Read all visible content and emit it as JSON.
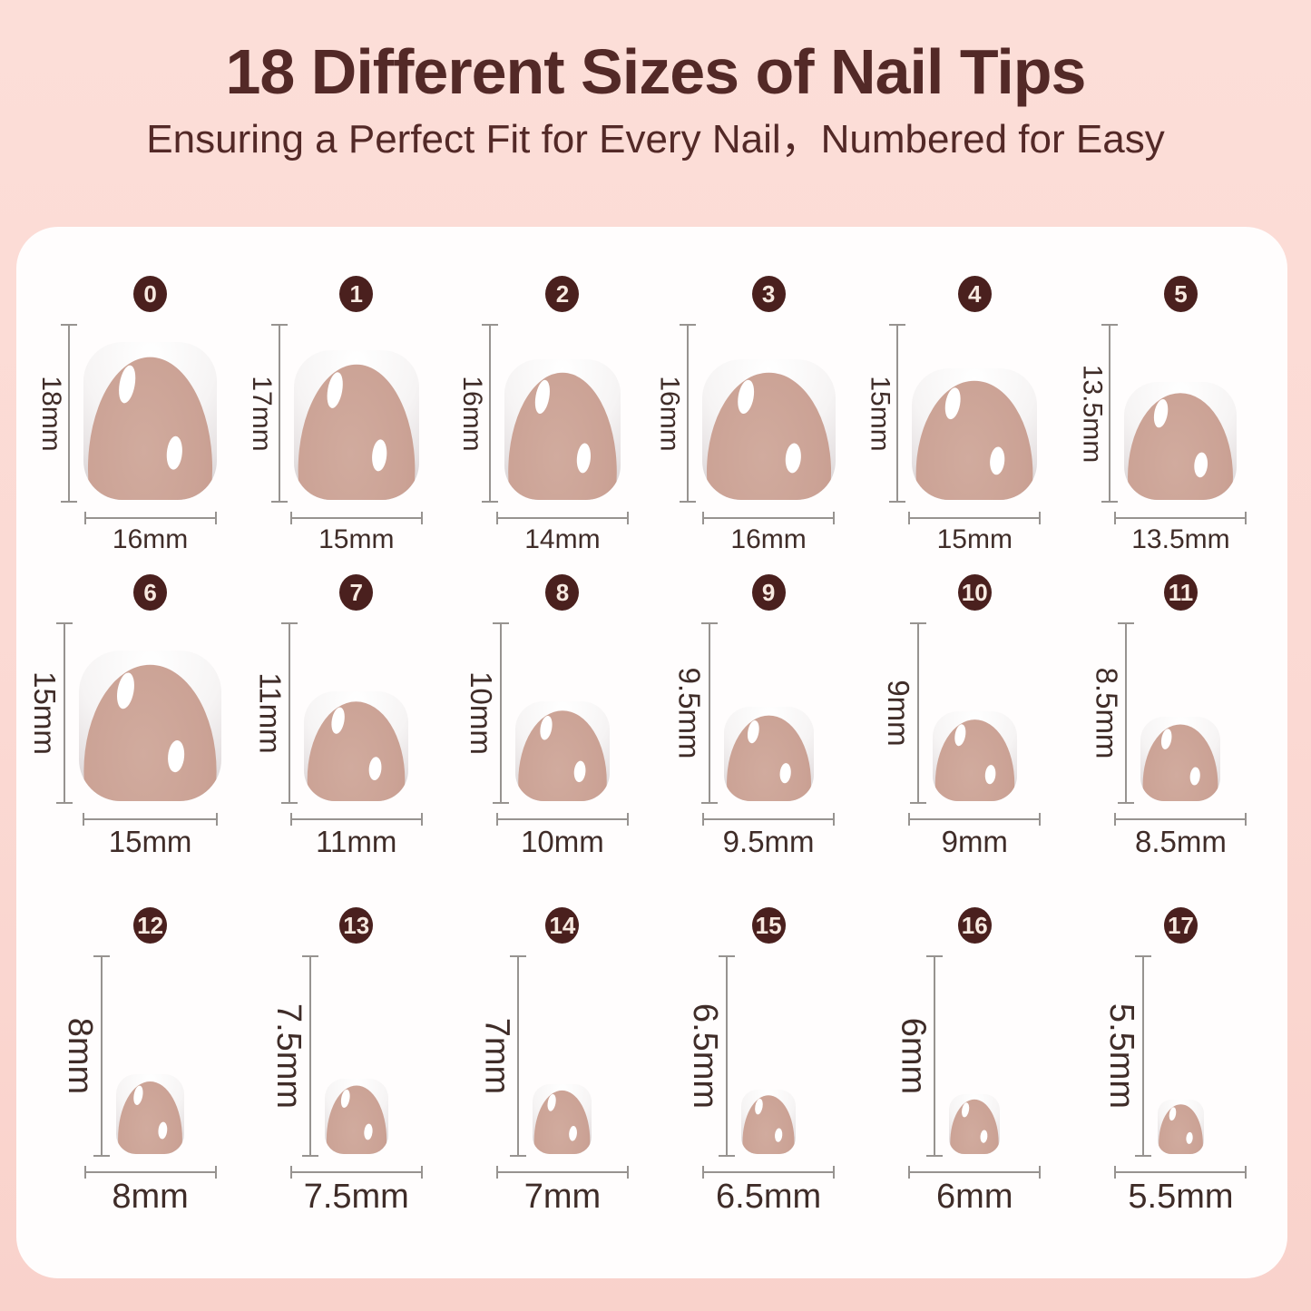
{
  "header": {
    "title": "18 Different Sizes of Nail Tips",
    "subtitle": "Ensuring a Perfect Fit for Every Nail，Numbered for Easy"
  },
  "colors": {
    "page_bg": "#fbd9d3",
    "panel_bg": "#fffdfd",
    "title_text": "#532927",
    "measure_text": "#3f2c28",
    "badge_bg": "#4a201e",
    "badge_text": "#f7e9e0",
    "line_gray": "#979390",
    "nail_pink": "#cba295",
    "nail_tip_white": "#f6f4f4"
  },
  "rows": [
    {
      "items": [
        {
          "number": "0",
          "height": "18mm",
          "width": "16mm"
        },
        {
          "number": "1",
          "height": "17mm",
          "width": "15mm"
        },
        {
          "number": "2",
          "height": "16mm",
          "width": "14mm"
        },
        {
          "number": "3",
          "height": "16mm",
          "width": "16mm"
        },
        {
          "number": "4",
          "height": "15mm",
          "width": "15mm"
        },
        {
          "number": "5",
          "height": "13.5mm",
          "width": "13.5mm"
        }
      ]
    },
    {
      "items": [
        {
          "number": "6",
          "height": "15mm",
          "width": "15mm"
        },
        {
          "number": "7",
          "height": "11mm",
          "width": "11mm"
        },
        {
          "number": "8",
          "height": "10mm",
          "width": "10mm"
        },
        {
          "number": "9",
          "height": "9.5mm",
          "width": "9.5mm"
        },
        {
          "number": "10",
          "height": "9mm",
          "width": "9mm"
        },
        {
          "number": "11",
          "height": "8.5mm",
          "width": "8.5mm"
        }
      ]
    },
    {
      "items": [
        {
          "number": "12",
          "height": "8mm",
          "width": "8mm"
        },
        {
          "number": "13",
          "height": "7.5mm",
          "width": "7.5mm"
        },
        {
          "number": "14",
          "height": "7mm",
          "width": "7mm"
        },
        {
          "number": "15",
          "height": "6.5mm",
          "width": "6.5mm"
        },
        {
          "number": "16",
          "height": "6mm",
          "width": "6mm"
        },
        {
          "number": "17",
          "height": "5.5mm",
          "width": "5.5mm"
        }
      ]
    }
  ]
}
